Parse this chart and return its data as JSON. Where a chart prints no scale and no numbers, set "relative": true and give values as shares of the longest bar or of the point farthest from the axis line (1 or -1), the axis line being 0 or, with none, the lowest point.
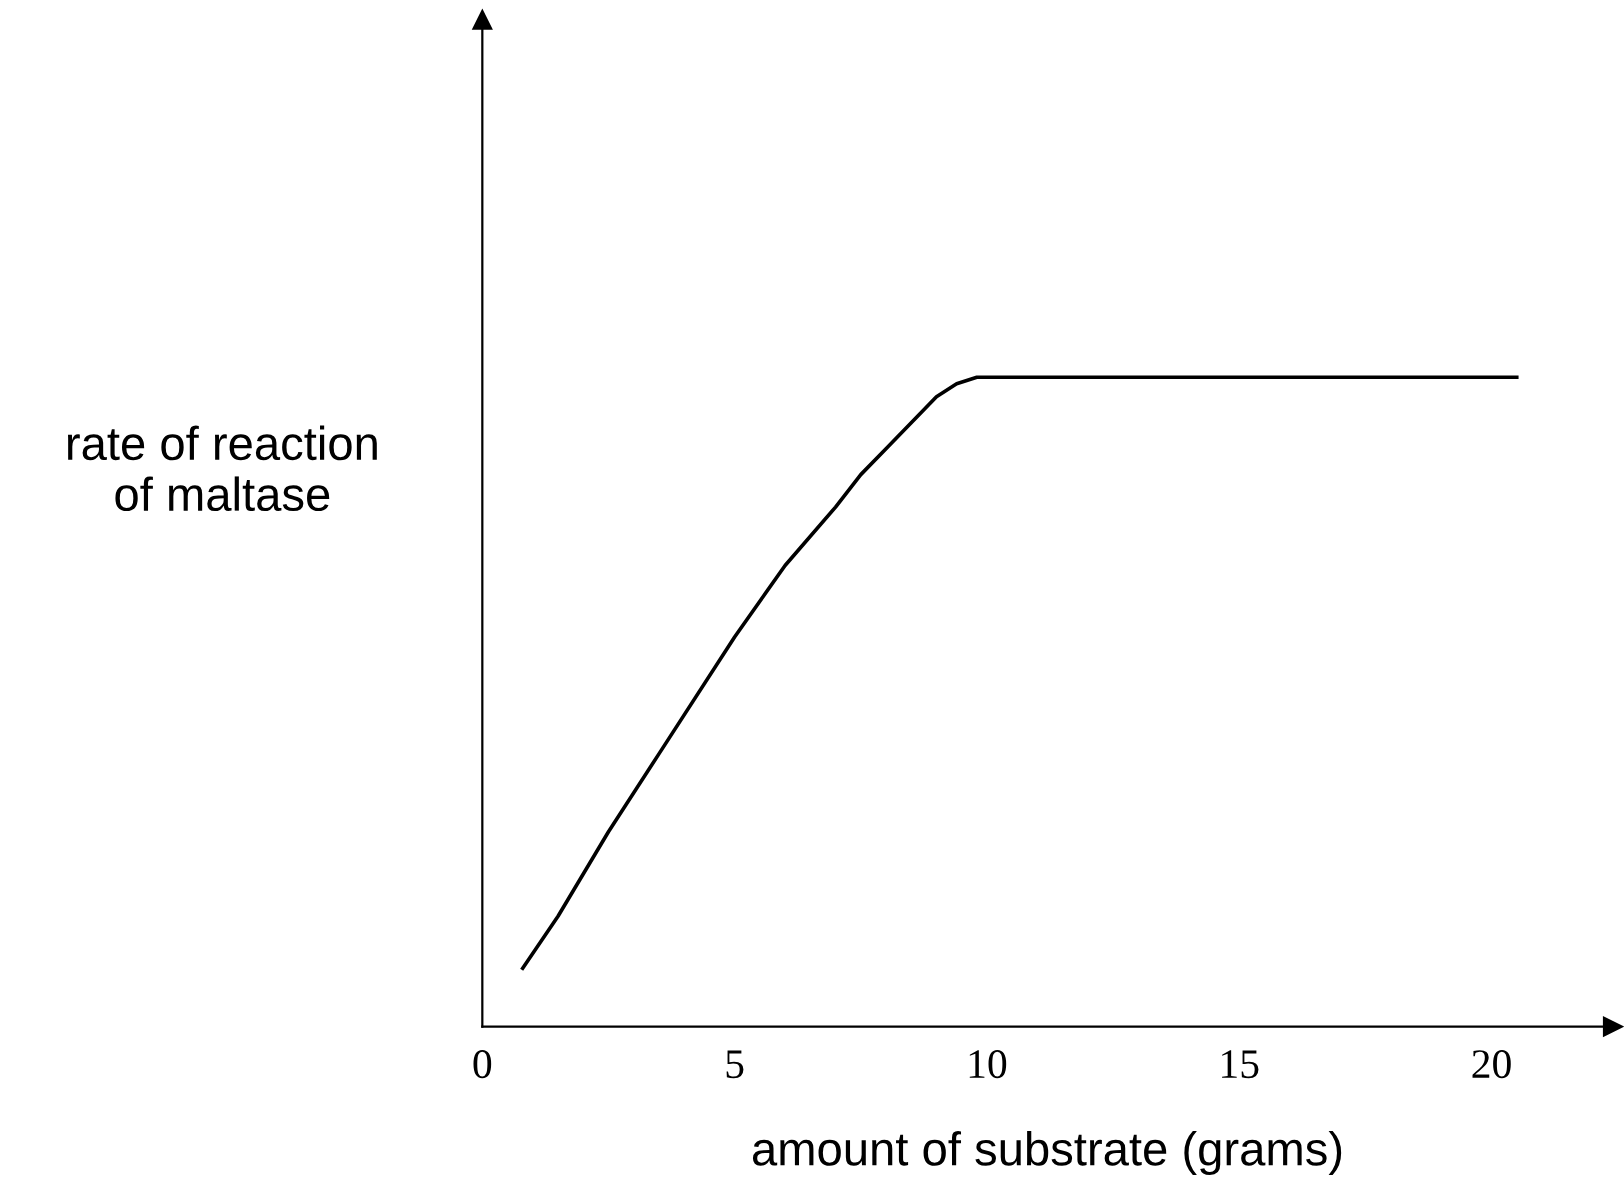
{
  "chart_data": {
    "type": "line",
    "xlabel": "amount of substrate (grams)",
    "ylabel": "rate of reaction\nof maltase",
    "relative": true,
    "xlim": [
      0,
      22.4
    ],
    "xticks": [
      0,
      5,
      10,
      15,
      20
    ],
    "color": "#000000",
    "marker": "none",
    "line_style": "solid",
    "grid": false,
    "legend": false,
    "x": [
      0.8,
      1.5,
      2.5,
      3.5,
      5,
      6,
      7,
      7.5,
      8,
      8.5,
      9,
      9.4,
      9.8,
      12,
      15,
      18,
      20.5
    ],
    "values": [
      0.09,
      0.17,
      0.3,
      0.42,
      0.6,
      0.71,
      0.8,
      0.85,
      0.89,
      0.93,
      0.97,
      0.99,
      1.0,
      1.0,
      1.0,
      1.0,
      1.0
    ]
  }
}
